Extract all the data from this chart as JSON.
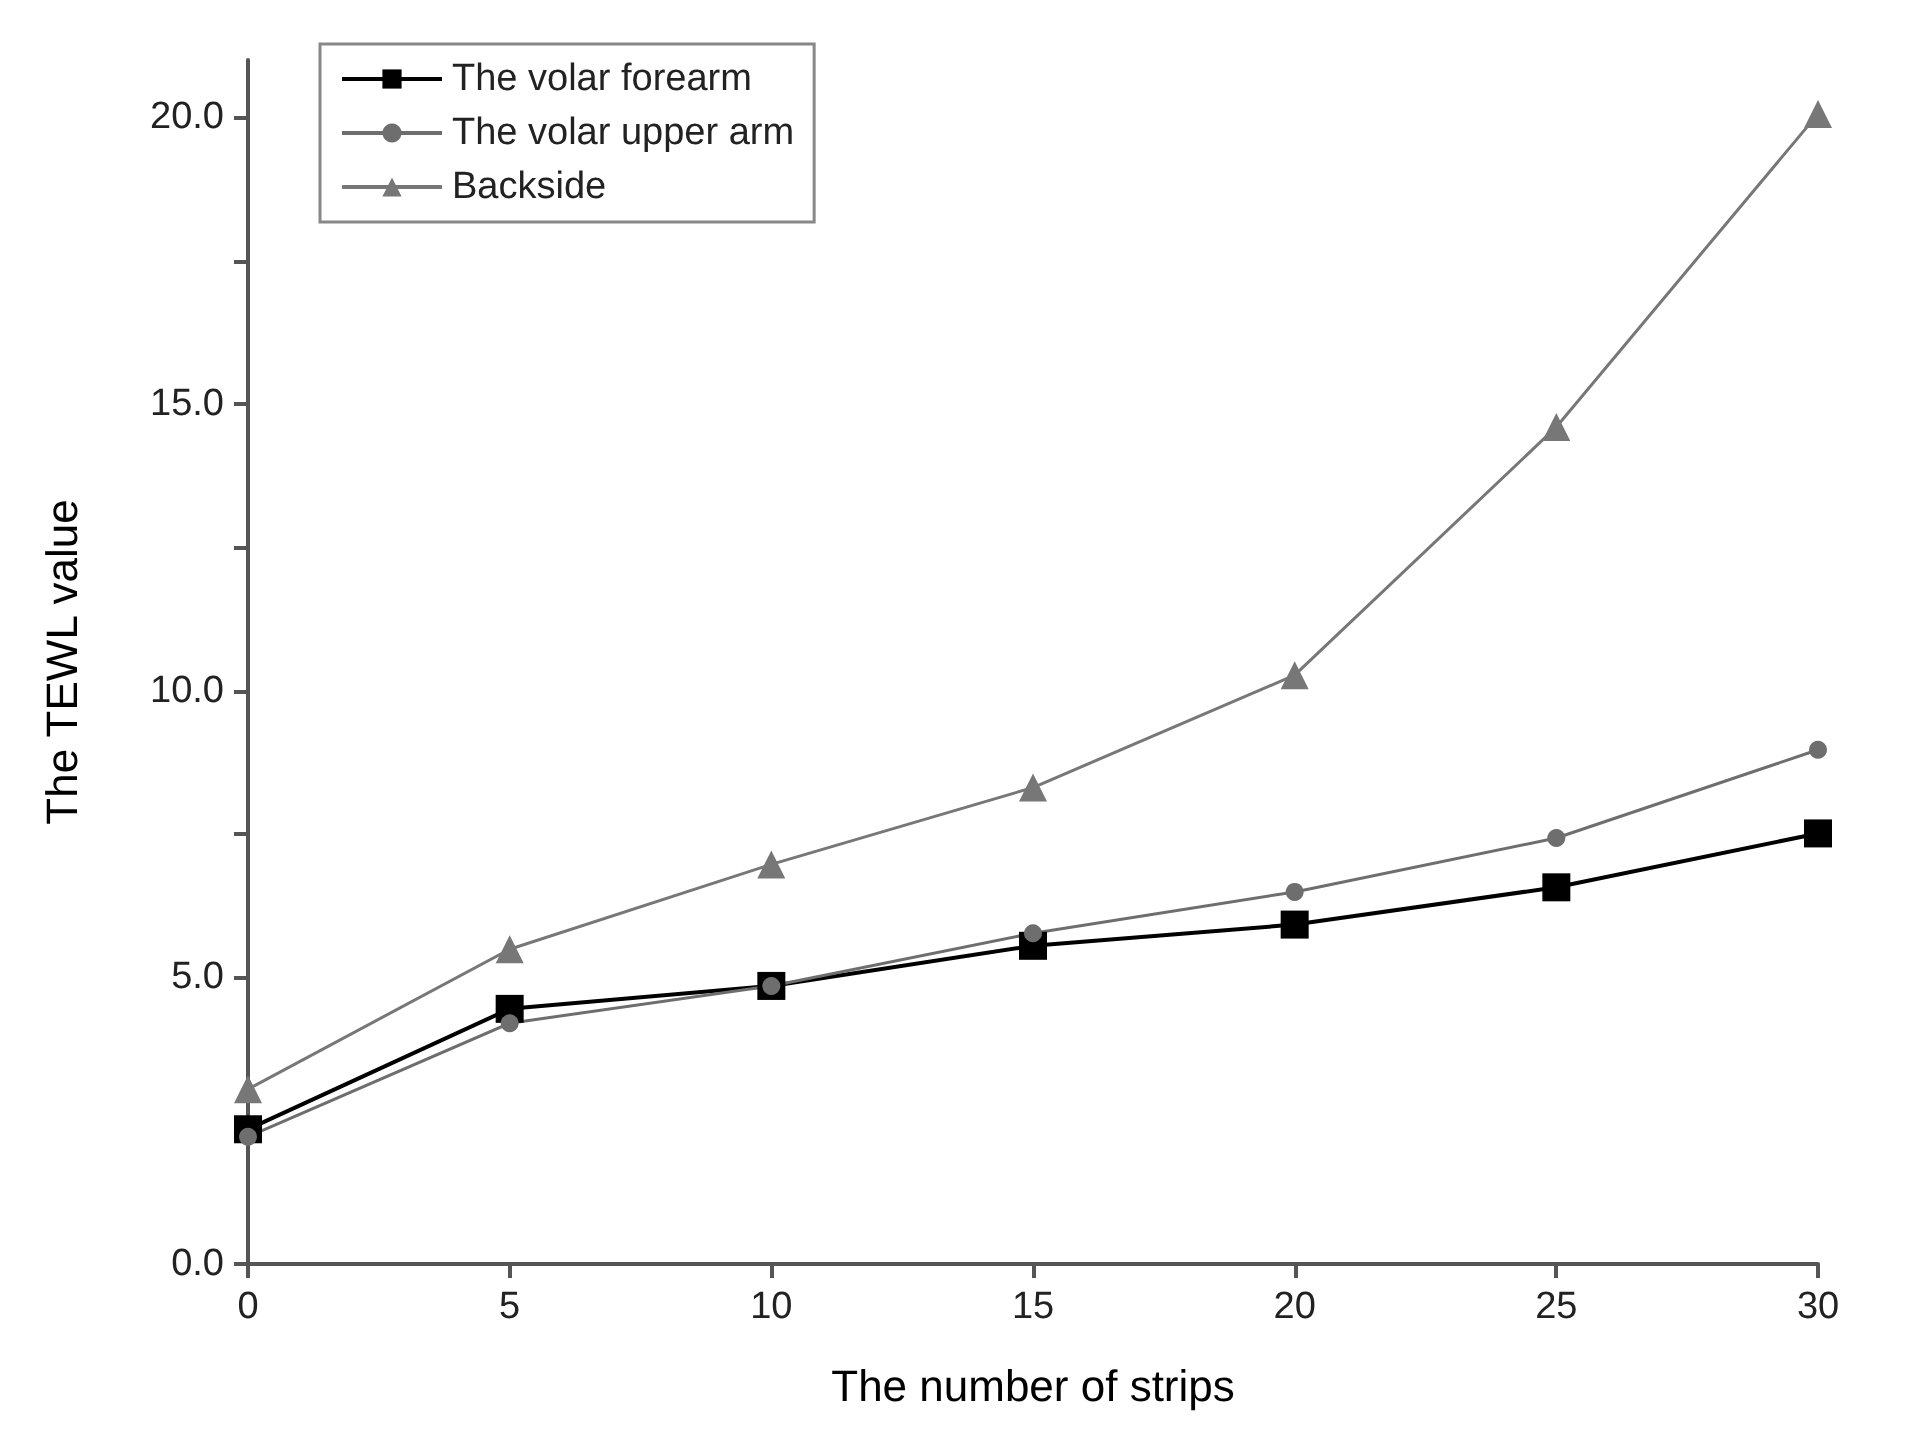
{
  "chart_data": {
    "type": "line",
    "xlabel": "The number of strips",
    "ylabel": "The TEWL value",
    "x": [
      0,
      5,
      10,
      15,
      20,
      25,
      30
    ],
    "series": [
      {
        "name": "The volar forearm",
        "color": "#000000",
        "marker": "square",
        "values": [
          2.35,
          4.45,
          4.85,
          5.55,
          5.92,
          6.57,
          7.51
        ]
      },
      {
        "name": "The volar upper arm",
        "color": "#6e6e6e",
        "marker": "circle",
        "values": [
          2.22,
          4.2,
          4.85,
          5.77,
          6.49,
          7.43,
          8.97
        ]
      },
      {
        "name": "Backside",
        "color": "#777777",
        "marker": "triangle",
        "values": [
          3.05,
          5.49,
          6.97,
          8.31,
          10.27,
          14.6,
          20.06
        ]
      }
    ],
    "xlim": [
      0,
      30
    ],
    "xticks": [
      0,
      5,
      10,
      15,
      20,
      25,
      30
    ],
    "ylim": [
      0,
      21
    ],
    "yticks": [
      {
        "value": 0,
        "label": "0.0"
      },
      {
        "value": 2.5,
        "label": null
      },
      {
        "value": 5,
        "label": "5.0"
      },
      {
        "value": 7.5,
        "label": null
      },
      {
        "value": 10,
        "label": "10.0"
      },
      {
        "value": 12.5,
        "label": null
      },
      {
        "value": 15,
        "label": "15.0"
      },
      {
        "value": 17.5,
        "label": null
      },
      {
        "value": 20,
        "label": "20.0"
      }
    ],
    "grid": false,
    "legend": "top left",
    "line_style": "solid"
  }
}
